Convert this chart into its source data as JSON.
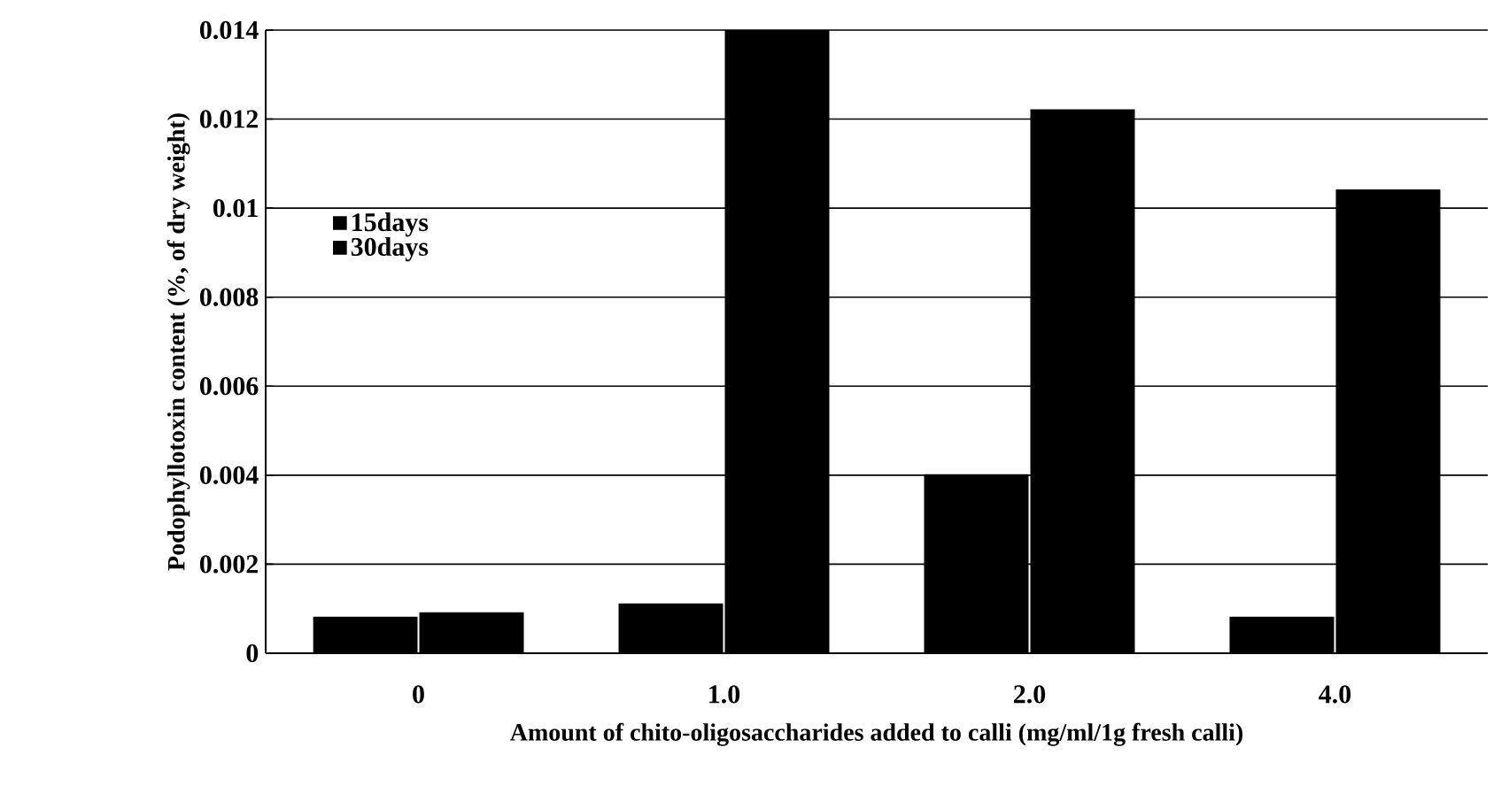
{
  "chart_data": {
    "type": "bar",
    "xlabel": "Amount of chito-oligosaccharides added to calli (mg/ml/1g fresh calli)",
    "ylabel": "Podophyllotoxin content (%, of dry weight)",
    "categories": [
      "0",
      "1.0",
      "2.0",
      "4.0"
    ],
    "series": [
      {
        "name": "15days",
        "color": "#000000",
        "values": [
          0.0008,
          0.0011,
          0.004,
          0.0008
        ]
      },
      {
        "name": "30days",
        "color": "#000000",
        "values": [
          0.0009,
          0.014,
          0.0122,
          0.0104
        ]
      }
    ],
    "ylim": [
      0,
      0.014
    ],
    "yticks": [
      0,
      0.002,
      0.004,
      0.006,
      0.008,
      0.01,
      0.012,
      0.014
    ],
    "grid": "y",
    "legend": "top left"
  }
}
